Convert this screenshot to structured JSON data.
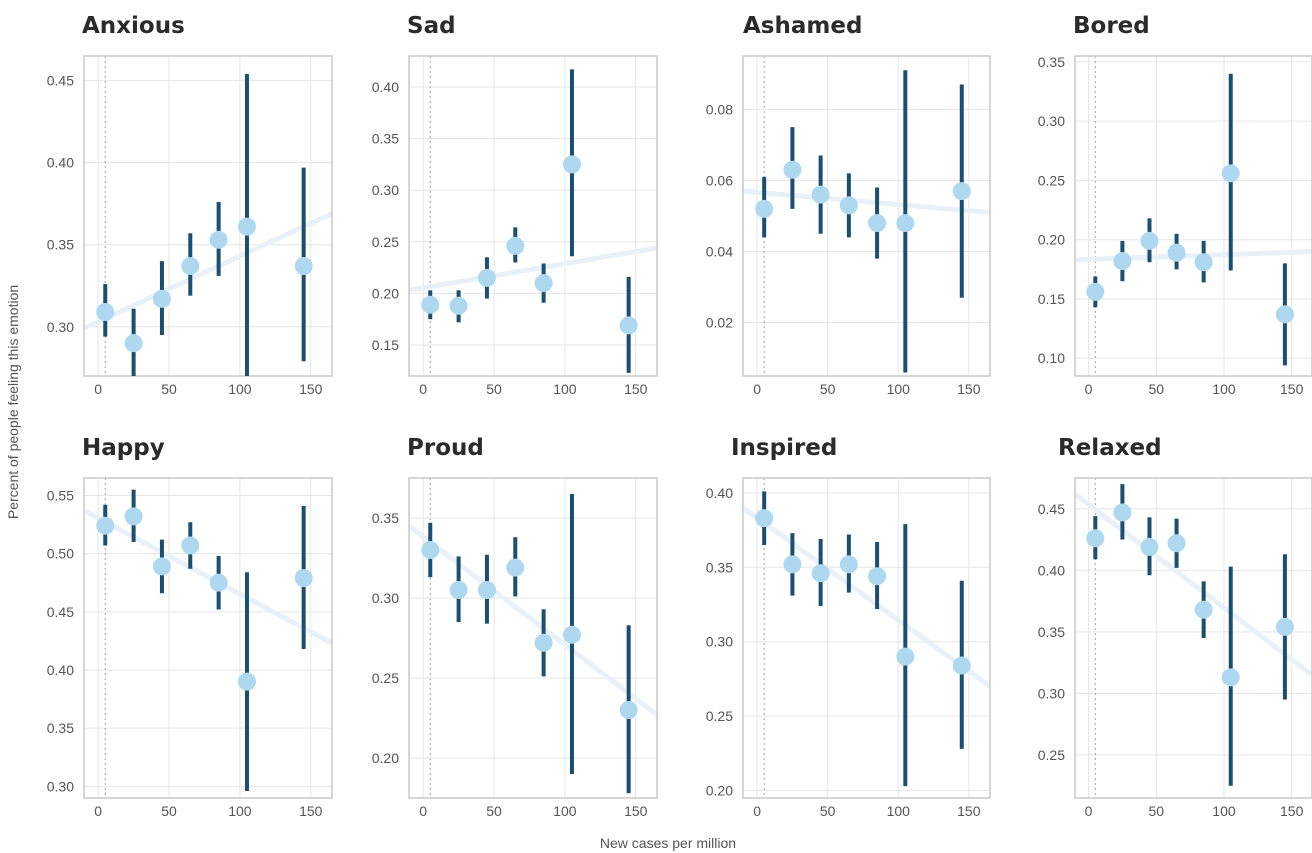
{
  "xlabel": "New cases per million",
  "ylabel": "Percent of people feeling this emotion",
  "colors": {
    "point": "#add8ef",
    "errorbar": "#1b4f72",
    "trend": "#e8f1f8",
    "grid": "#e6e6e6",
    "frame": "#c8c8c8",
    "vline": "#a0a0a0"
  },
  "chart_data": [
    {
      "type": "scatter",
      "title": "Anxious",
      "xlim": [
        -10,
        165
      ],
      "ylim": [
        0.27,
        0.465
      ],
      "xticks": [
        0,
        50,
        100,
        150
      ],
      "yticks": [
        0.3,
        0.35,
        0.4,
        0.45
      ],
      "points": [
        {
          "x": 5,
          "y": 0.309,
          "lo": 0.294,
          "hi": 0.326
        },
        {
          "x": 25,
          "y": 0.29,
          "lo": 0.27,
          "hi": 0.311
        },
        {
          "x": 45,
          "y": 0.317,
          "lo": 0.295,
          "hi": 0.34
        },
        {
          "x": 65,
          "y": 0.337,
          "lo": 0.319,
          "hi": 0.357
        },
        {
          "x": 85,
          "y": 0.353,
          "lo": 0.331,
          "hi": 0.376
        },
        {
          "x": 105,
          "y": 0.361,
          "lo": 0.27,
          "hi": 0.454
        },
        {
          "x": 145,
          "y": 0.337,
          "lo": 0.279,
          "hi": 0.397
        }
      ],
      "trend": [
        [
          -10,
          0.299
        ],
        [
          165,
          0.369
        ]
      ]
    },
    {
      "type": "scatter",
      "title": "Sad",
      "xlim": [
        -10,
        165
      ],
      "ylim": [
        0.12,
        0.43
      ],
      "xticks": [
        0,
        50,
        100,
        150
      ],
      "yticks": [
        0.15,
        0.2,
        0.25,
        0.3,
        0.35,
        0.4
      ],
      "points": [
        {
          "x": 5,
          "y": 0.189,
          "lo": 0.175,
          "hi": 0.203
        },
        {
          "x": 25,
          "y": 0.188,
          "lo": 0.172,
          "hi": 0.203
        },
        {
          "x": 45,
          "y": 0.215,
          "lo": 0.195,
          "hi": 0.235
        },
        {
          "x": 65,
          "y": 0.246,
          "lo": 0.23,
          "hi": 0.264
        },
        {
          "x": 85,
          "y": 0.21,
          "lo": 0.191,
          "hi": 0.229
        },
        {
          "x": 105,
          "y": 0.325,
          "lo": 0.236,
          "hi": 0.417
        },
        {
          "x": 145,
          "y": 0.169,
          "lo": 0.123,
          "hi": 0.216
        }
      ],
      "trend": [
        [
          -10,
          0.203
        ],
        [
          165,
          0.244
        ]
      ]
    },
    {
      "type": "scatter",
      "title": "Ashamed",
      "xlim": [
        -10,
        165
      ],
      "ylim": [
        0.005,
        0.095
      ],
      "xticks": [
        0,
        50,
        100,
        150
      ],
      "yticks": [
        0.02,
        0.04,
        0.06,
        0.08
      ],
      "points": [
        {
          "x": 5,
          "y": 0.052,
          "lo": 0.044,
          "hi": 0.061
        },
        {
          "x": 25,
          "y": 0.063,
          "lo": 0.052,
          "hi": 0.075
        },
        {
          "x": 45,
          "y": 0.056,
          "lo": 0.045,
          "hi": 0.067
        },
        {
          "x": 65,
          "y": 0.053,
          "lo": 0.044,
          "hi": 0.062
        },
        {
          "x": 85,
          "y": 0.048,
          "lo": 0.038,
          "hi": 0.058
        },
        {
          "x": 105,
          "y": 0.048,
          "lo": 0.006,
          "hi": 0.091
        },
        {
          "x": 145,
          "y": 0.057,
          "lo": 0.027,
          "hi": 0.087
        }
      ],
      "trend": [
        [
          -10,
          0.057
        ],
        [
          165,
          0.051
        ]
      ]
    },
    {
      "type": "scatter",
      "title": "Bored",
      "xlim": [
        -10,
        165
      ],
      "ylim": [
        0.085,
        0.355
      ],
      "xticks": [
        0,
        50,
        100,
        150
      ],
      "yticks": [
        0.1,
        0.15,
        0.2,
        0.25,
        0.3,
        0.35
      ],
      "points": [
        {
          "x": 5,
          "y": 0.156,
          "lo": 0.143,
          "hi": 0.169
        },
        {
          "x": 25,
          "y": 0.182,
          "lo": 0.165,
          "hi": 0.199
        },
        {
          "x": 45,
          "y": 0.199,
          "lo": 0.181,
          "hi": 0.218
        },
        {
          "x": 65,
          "y": 0.189,
          "lo": 0.175,
          "hi": 0.205
        },
        {
          "x": 85,
          "y": 0.181,
          "lo": 0.164,
          "hi": 0.199
        },
        {
          "x": 105,
          "y": 0.256,
          "lo": 0.174,
          "hi": 0.34
        },
        {
          "x": 145,
          "y": 0.137,
          "lo": 0.094,
          "hi": 0.18
        }
      ],
      "trend": [
        [
          -10,
          0.183
        ],
        [
          165,
          0.19
        ]
      ]
    },
    {
      "type": "scatter",
      "title": "Happy",
      "xlim": [
        -10,
        165
      ],
      "ylim": [
        0.29,
        0.565
      ],
      "xticks": [
        0,
        50,
        100,
        150
      ],
      "yticks": [
        0.3,
        0.35,
        0.4,
        0.45,
        0.5,
        0.55
      ],
      "points": [
        {
          "x": 5,
          "y": 0.524,
          "lo": 0.507,
          "hi": 0.542
        },
        {
          "x": 25,
          "y": 0.532,
          "lo": 0.51,
          "hi": 0.555
        },
        {
          "x": 45,
          "y": 0.489,
          "lo": 0.466,
          "hi": 0.512
        },
        {
          "x": 65,
          "y": 0.507,
          "lo": 0.487,
          "hi": 0.527
        },
        {
          "x": 85,
          "y": 0.475,
          "lo": 0.452,
          "hi": 0.498
        },
        {
          "x": 105,
          "y": 0.39,
          "lo": 0.296,
          "hi": 0.484
        },
        {
          "x": 145,
          "y": 0.479,
          "lo": 0.418,
          "hi": 0.541
        }
      ],
      "trend": [
        [
          -10,
          0.537
        ],
        [
          165,
          0.423
        ]
      ]
    },
    {
      "type": "scatter",
      "title": "Proud",
      "xlim": [
        -10,
        165
      ],
      "ylim": [
        0.175,
        0.375
      ],
      "xticks": [
        0,
        50,
        100,
        150
      ],
      "yticks": [
        0.2,
        0.25,
        0.3,
        0.35
      ],
      "points": [
        {
          "x": 5,
          "y": 0.33,
          "lo": 0.313,
          "hi": 0.347
        },
        {
          "x": 25,
          "y": 0.305,
          "lo": 0.285,
          "hi": 0.326
        },
        {
          "x": 45,
          "y": 0.305,
          "lo": 0.284,
          "hi": 0.327
        },
        {
          "x": 65,
          "y": 0.319,
          "lo": 0.301,
          "hi": 0.338
        },
        {
          "x": 85,
          "y": 0.272,
          "lo": 0.251,
          "hi": 0.293
        },
        {
          "x": 105,
          "y": 0.277,
          "lo": 0.19,
          "hi": 0.365
        },
        {
          "x": 145,
          "y": 0.23,
          "lo": 0.178,
          "hi": 0.283
        }
      ],
      "trend": [
        [
          -10,
          0.345
        ],
        [
          165,
          0.227
        ]
      ]
    },
    {
      "type": "scatter",
      "title": "Inspired",
      "xlim": [
        -10,
        165
      ],
      "ylim": [
        0.195,
        0.41
      ],
      "xticks": [
        0,
        50,
        100,
        150
      ],
      "yticks": [
        0.2,
        0.25,
        0.3,
        0.35,
        0.4
      ],
      "points": [
        {
          "x": 5,
          "y": 0.383,
          "lo": 0.365,
          "hi": 0.401
        },
        {
          "x": 25,
          "y": 0.352,
          "lo": 0.331,
          "hi": 0.373
        },
        {
          "x": 45,
          "y": 0.346,
          "lo": 0.324,
          "hi": 0.369
        },
        {
          "x": 65,
          "y": 0.352,
          "lo": 0.333,
          "hi": 0.372
        },
        {
          "x": 85,
          "y": 0.344,
          "lo": 0.322,
          "hi": 0.367
        },
        {
          "x": 105,
          "y": 0.29,
          "lo": 0.203,
          "hi": 0.379
        },
        {
          "x": 145,
          "y": 0.284,
          "lo": 0.228,
          "hi": 0.341
        }
      ],
      "trend": [
        [
          -10,
          0.39
        ],
        [
          165,
          0.27
        ]
      ]
    },
    {
      "type": "scatter",
      "title": "Relaxed",
      "xlim": [
        -10,
        165
      ],
      "ylim": [
        0.215,
        0.475
      ],
      "xticks": [
        0,
        50,
        100,
        150
      ],
      "yticks": [
        0.25,
        0.3,
        0.35,
        0.4,
        0.45
      ],
      "points": [
        {
          "x": 5,
          "y": 0.426,
          "lo": 0.409,
          "hi": 0.444
        },
        {
          "x": 25,
          "y": 0.447,
          "lo": 0.425,
          "hi": 0.47
        },
        {
          "x": 45,
          "y": 0.419,
          "lo": 0.396,
          "hi": 0.443
        },
        {
          "x": 65,
          "y": 0.422,
          "lo": 0.402,
          "hi": 0.442
        },
        {
          "x": 85,
          "y": 0.368,
          "lo": 0.345,
          "hi": 0.391
        },
        {
          "x": 105,
          "y": 0.313,
          "lo": 0.225,
          "hi": 0.403
        },
        {
          "x": 145,
          "y": 0.354,
          "lo": 0.295,
          "hi": 0.413
        }
      ],
      "trend": [
        [
          -10,
          0.462
        ],
        [
          165,
          0.315
        ]
      ]
    }
  ]
}
